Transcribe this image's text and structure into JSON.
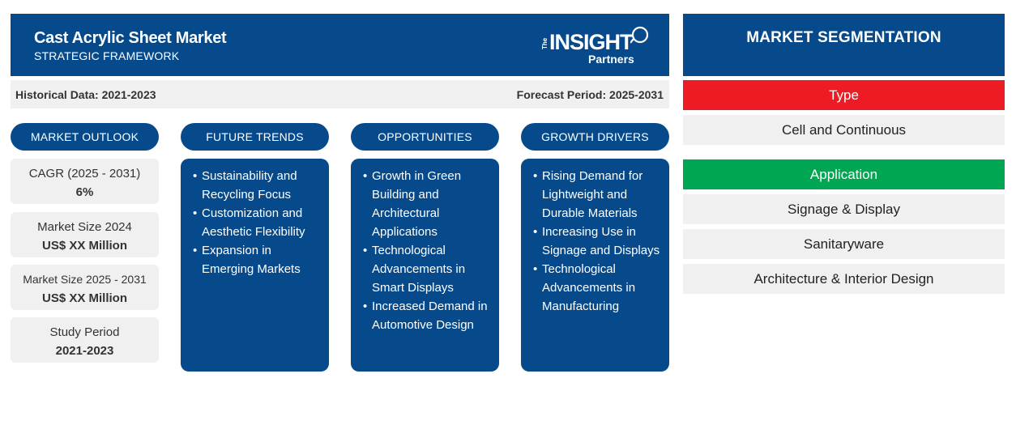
{
  "header": {
    "title": "Cast Acrylic Sheet Market",
    "subtitle": "STRATEGIC FRAMEWORK",
    "logo": {
      "the": "The",
      "insight": "INSIGHT",
      "partners": "Partners"
    }
  },
  "periods": {
    "historical": "Historical Data: 2021-2023",
    "forecast": "Forecast Period: 2025-2031"
  },
  "columns": {
    "outlook": "MARKET OUTLOOK",
    "trends": "FUTURE TRENDS",
    "opportunities": "OPPORTUNITIES",
    "drivers": "GROWTH DRIVERS"
  },
  "outlook": [
    {
      "label": "CAGR (2025 - 2031)",
      "value": "6%"
    },
    {
      "label": "Market Size 2024",
      "value": "US$ XX Million"
    },
    {
      "label": "Market Size 2025 - 2031",
      "value": "US$ XX Million"
    },
    {
      "label": "Study Period",
      "value": "2021-2023"
    }
  ],
  "trends": [
    "Sustainability and Recycling Focus",
    "Customization and Aesthetic Flexibility",
    "Expansion in Emerging Markets"
  ],
  "opportunities": [
    "Growth in Green Building and Architectural Applications",
    "Technological Advancements in Smart Displays",
    "Increased Demand in Automotive Design"
  ],
  "drivers": [
    "Rising Demand for Lightweight and Durable Materials",
    "Increasing Use in Signage and Displays",
    "Technological Advancements in Manufacturing"
  ],
  "segmentation": {
    "title": "MARKET SEGMENTATION",
    "type_label": "Type",
    "type_items": [
      "Cell and Continuous"
    ],
    "application_label": "Application",
    "application_items": [
      "Signage & Display",
      "Sanitaryware",
      "Architecture & Interior Design"
    ]
  },
  "colors": {
    "navy": "#064a8c",
    "type_red": "#ed1c24",
    "application_green": "#00a651",
    "light_gray": "#f0f0f0"
  }
}
